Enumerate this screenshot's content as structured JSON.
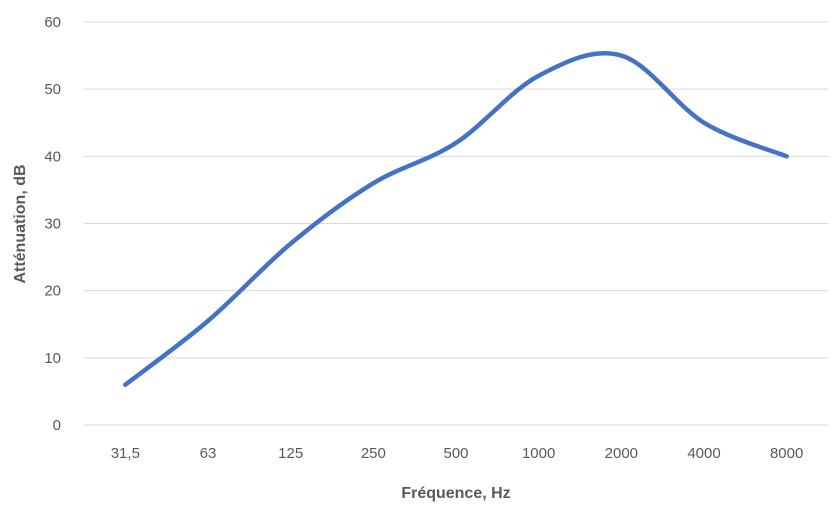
{
  "chart_data": {
    "type": "line",
    "title": "",
    "xlabel": "Fréquence, Hz",
    "ylabel": "Atténuation, dB",
    "categories": [
      "31,5",
      "63",
      "125",
      "250",
      "500",
      "1000",
      "2000",
      "4000",
      "8000"
    ],
    "series": [
      {
        "values": [
          6,
          15.5,
          27,
          36,
          42,
          52,
          55,
          45,
          40
        ],
        "color": "#4472C4"
      }
    ],
    "ylim": [
      0,
      60
    ],
    "yticks": [
      0,
      10,
      20,
      30,
      40,
      50,
      60
    ],
    "grid": "horizontal",
    "legend": "none",
    "gridline_color": "#d9d9d9",
    "text_color": "#595959"
  }
}
